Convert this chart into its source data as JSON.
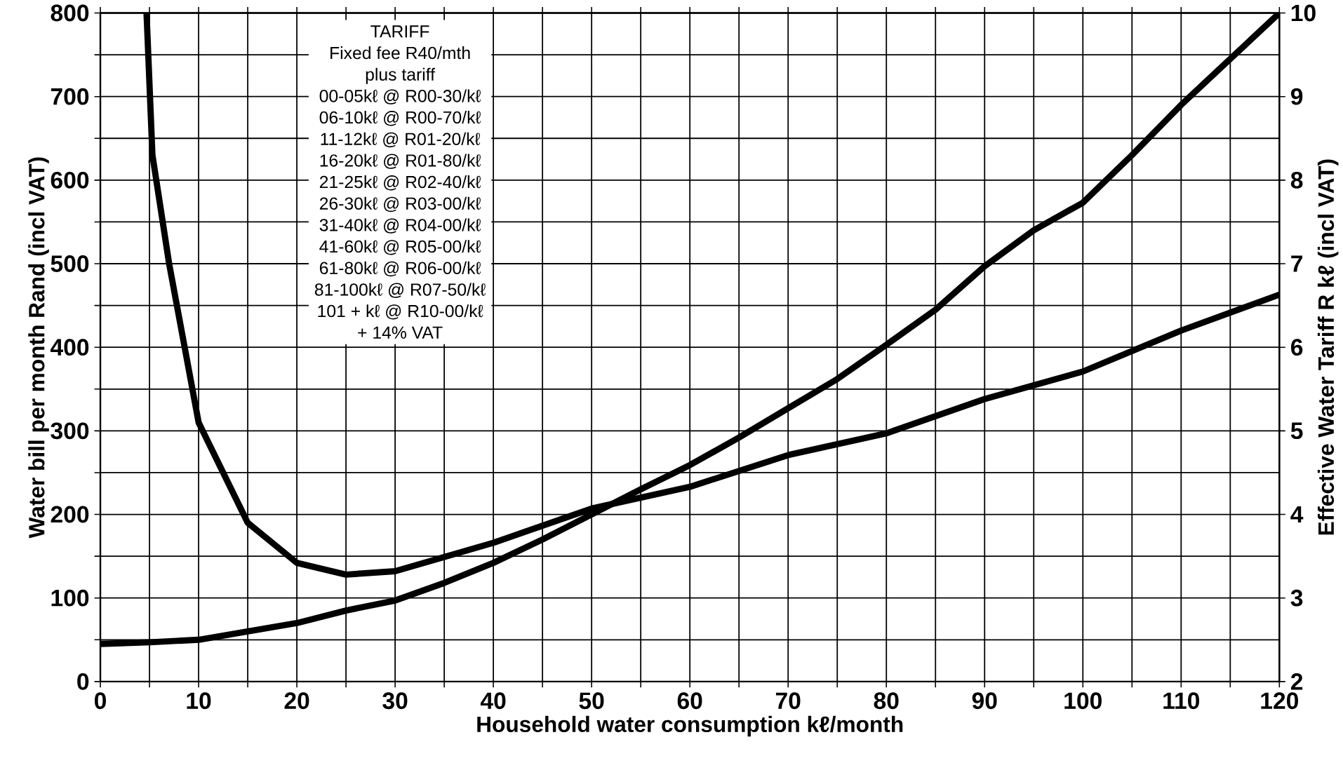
{
  "chart_data": {
    "type": "line",
    "xlabel": "Household water consumption kℓ/month",
    "ylabel": "Water bill per month Rand (incl VAT)",
    "y2label": "Effective Water Tariff R kℓ (incl VAT)",
    "xlim": [
      0,
      120
    ],
    "ylim": [
      0,
      800
    ],
    "y2lim": [
      2,
      10
    ],
    "xticks": [
      0,
      {
        "value": 5,
        "label": null
      },
      10,
      {
        "value": 15,
        "label": null
      },
      20,
      {
        "value": 25,
        "label": null
      },
      30,
      {
        "value": 35,
        "label": null
      },
      40,
      {
        "value": 45,
        "label": null
      },
      50,
      {
        "value": 55,
        "label": null
      },
      60,
      {
        "value": 65,
        "label": null
      },
      70,
      {
        "value": 75,
        "label": null
      },
      80,
      {
        "value": 85,
        "label": null
      },
      90,
      {
        "value": 95,
        "label": null
      },
      100,
      {
        "value": 105,
        "label": null
      },
      110,
      {
        "value": 115,
        "label": null
      },
      120
    ],
    "yticks": [
      0,
      {
        "value": 50,
        "label": null
      },
      100,
      {
        "value": 150,
        "label": null
      },
      200,
      {
        "value": 250,
        "label": null
      },
      300,
      {
        "value": 350,
        "label": null
      },
      400,
      {
        "value": 450,
        "label": null
      },
      500,
      {
        "value": 550,
        "label": null
      },
      600,
      {
        "value": 650,
        "label": null
      },
      700,
      {
        "value": 750,
        "label": null
      },
      800
    ],
    "y2ticks": [
      2,
      3,
      4,
      5,
      6,
      7,
      8,
      9,
      10
    ],
    "grid": true,
    "marker": "none",
    "line_style": "solid",
    "series": [
      {
        "color": "#000000",
        "x": [
          0,
          5,
          10,
          15,
          20,
          25,
          30,
          35,
          40,
          45,
          50,
          55,
          60,
          65,
          70,
          75,
          80,
          85,
          90,
          95,
          100,
          105,
          110,
          115,
          120
        ],
        "values": [
          45,
          47,
          50,
          60,
          70,
          85,
          97,
          118,
          142,
          170,
          200,
          230,
          259,
          292,
          327,
          362,
          403,
          445,
          497,
          540,
          573,
          630,
          690,
          745,
          800
        ]
      },
      {
        "color": "#000000",
        "axis": "y2",
        "x": [
          4.7,
          5.3,
          7,
          10,
          15,
          20,
          25,
          30,
          40,
          50,
          60,
          70,
          80,
          90,
          100,
          110,
          120
        ],
        "values": [
          10,
          8.3,
          7.0,
          5.1,
          3.9,
          3.42,
          3.28,
          3.32,
          3.66,
          4.07,
          4.33,
          4.71,
          4.97,
          5.38,
          5.71,
          6.2,
          6.63
        ]
      }
    ],
    "annotations": [
      "TARIFF",
      "Fixed fee R40/mth",
      "plus tariff",
      "00-05kℓ @ R00-30/kℓ",
      "06-10kℓ @ R00-70/kℓ",
      "11-12kℓ @ R01-20/kℓ",
      "16-20kℓ @ R01-80/kℓ",
      "21-25kℓ @ R02-40/kℓ",
      "26-30kℓ @ R03-00/kℓ",
      "31-40kℓ @ R04-00/kℓ",
      "41-60kℓ @ R05-00/kℓ",
      "61-80kℓ @ R06-00/kℓ",
      "81-100kℓ @ R07-50/kℓ",
      "101 + kℓ @ R10-00/kℓ",
      "+ 14% VAT"
    ]
  }
}
